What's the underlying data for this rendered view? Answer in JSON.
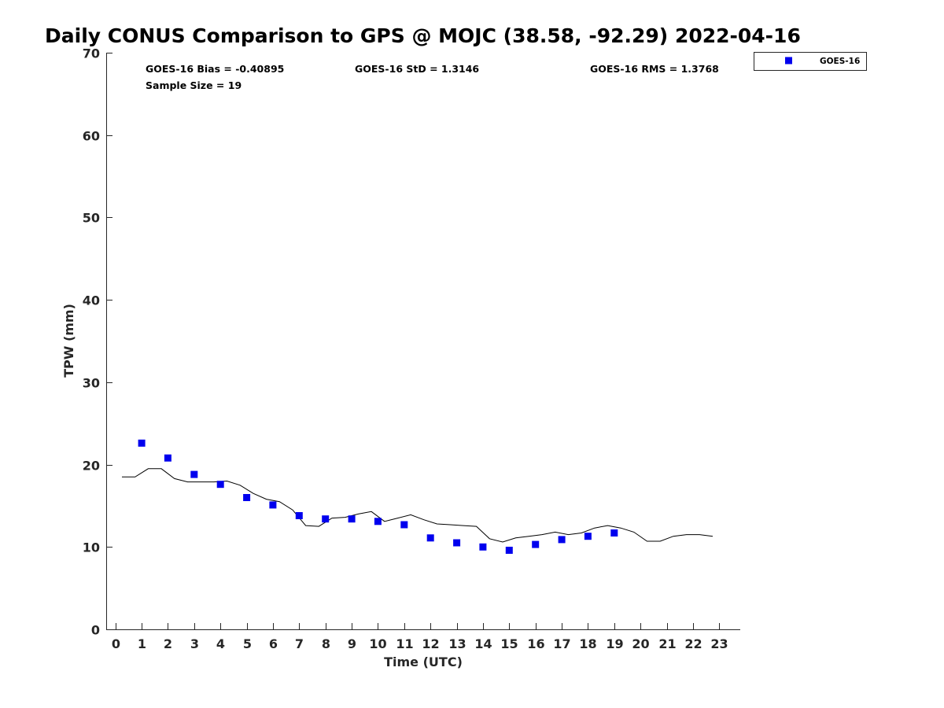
{
  "chart_data": {
    "type": "scatter",
    "title": "Daily CONUS Comparison to GPS @ MOJC (38.58, -92.29) 2022-04-16",
    "xlabel": "Time (UTC)",
    "ylabel": "TPW (mm)",
    "xlim": [
      -0.35,
      23.8
    ],
    "ylim": [
      0,
      70
    ],
    "xticks": [
      0,
      1,
      2,
      3,
      4,
      5,
      6,
      7,
      8,
      9,
      10,
      11,
      12,
      13,
      14,
      15,
      16,
      17,
      18,
      19,
      20,
      21,
      22,
      23
    ],
    "yticks": [
      0,
      10,
      20,
      30,
      40,
      50,
      60,
      70
    ],
    "grid": false,
    "legend_position": "top-right outside",
    "stats": {
      "bias": "GOES-16 Bias = -0.40895",
      "std": "GOES-16 StD = 1.3146",
      "rms": "GOES-16 RMS = 1.3768",
      "sample": "Sample Size = 19"
    },
    "series": [
      {
        "name": "GOES-16",
        "kind": "scatter",
        "marker": "square",
        "color": "#0000ee",
        "x": [
          1,
          2,
          3,
          4,
          5,
          6,
          7,
          8,
          9,
          10,
          11,
          12,
          13,
          14,
          15,
          16,
          17,
          18,
          19
        ],
        "y": [
          22.6,
          20.8,
          18.8,
          17.6,
          16.0,
          15.1,
          13.8,
          13.4,
          13.4,
          13.1,
          12.7,
          11.1,
          10.5,
          10.0,
          9.6,
          10.3,
          10.9,
          11.3,
          11.7
        ]
      },
      {
        "name": "GPS",
        "kind": "line",
        "color": "#000000",
        "x": [
          0.25,
          0.75,
          1.25,
          1.75,
          2.25,
          2.75,
          3.25,
          3.75,
          4.25,
          4.75,
          5.25,
          5.75,
          6.25,
          6.75,
          7.25,
          7.75,
          8.25,
          8.75,
          9.25,
          9.75,
          10.25,
          10.75,
          11.25,
          11.75,
          12.25,
          12.75,
          13.25,
          13.75,
          14.25,
          14.75,
          15.25,
          15.75,
          16.25,
          16.75,
          17.25,
          17.75,
          18.25,
          18.75,
          19.25,
          19.75,
          20.25,
          20.75,
          21.25,
          21.75,
          22.25,
          22.75
        ],
        "y": [
          18.5,
          18.5,
          19.5,
          19.5,
          18.3,
          17.9,
          17.9,
          17.9,
          18.0,
          17.5,
          16.5,
          15.8,
          15.5,
          14.5,
          12.6,
          12.5,
          13.5,
          13.6,
          14.0,
          14.3,
          13.1,
          13.5,
          13.9,
          13.3,
          12.8,
          12.7,
          12.6,
          12.5,
          11.0,
          10.6,
          11.1,
          11.3,
          11.5,
          11.8,
          11.5,
          11.7,
          12.3,
          12.6,
          12.3,
          11.8,
          10.7,
          10.7,
          11.3,
          11.5,
          11.5,
          11.3
        ]
      }
    ]
  }
}
